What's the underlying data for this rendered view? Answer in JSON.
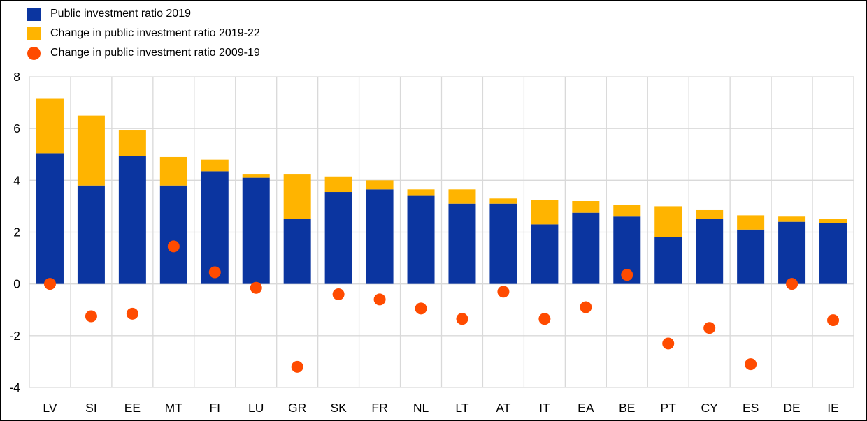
{
  "figure": {
    "background": "#ffffff",
    "border_color": "#000000"
  },
  "legend": {
    "position": "top-left",
    "items": [
      {
        "id": "public-investment-ratio-2019",
        "label": "Public investment ratio 2019",
        "marker": "square",
        "color": "#0b35a0"
      },
      {
        "id": "change-2019-22",
        "label": "Change in public investment ratio 2019-22",
        "marker": "square",
        "color": "#ffb400"
      },
      {
        "id": "change-2009-19",
        "label": "Change in public investment ratio 2009-19",
        "marker": "circle",
        "color": "#ff4b00"
      }
    ]
  },
  "chart_data": {
    "type": "bar",
    "subtype": "stacked-bars-with-scatter-overlay",
    "title": "",
    "xlabel": "",
    "ylabel": "",
    "categories": [
      "LV",
      "SI",
      "EE",
      "MT",
      "FI",
      "LU",
      "GR",
      "SK",
      "FR",
      "NL",
      "LT",
      "AT",
      "IT",
      "EA",
      "BE",
      "PT",
      "CY",
      "ES",
      "DE",
      "IE"
    ],
    "series": [
      {
        "name": "Public investment ratio 2019",
        "type": "bar",
        "color": "#0b35a0",
        "values": [
          5.05,
          3.8,
          4.95,
          3.8,
          4.35,
          4.1,
          2.5,
          3.55,
          3.65,
          3.4,
          3.1,
          3.1,
          2.3,
          2.75,
          2.6,
          1.8,
          2.5,
          2.1,
          2.4,
          2.35
        ]
      },
      {
        "name": "Change in public investment ratio 2019-22",
        "type": "bar",
        "stacked_on": "Public investment ratio 2019",
        "color": "#ffb400",
        "values": [
          2.1,
          2.7,
          1.0,
          1.1,
          0.45,
          0.15,
          1.75,
          0.6,
          0.35,
          0.25,
          0.55,
          0.2,
          0.95,
          0.45,
          0.45,
          1.2,
          0.35,
          0.55,
          0.2,
          0.15
        ]
      },
      {
        "name": "Change in public investment ratio 2009-19",
        "type": "scatter",
        "color": "#ff4b00",
        "values": [
          0.0,
          -1.25,
          -1.15,
          1.45,
          0.45,
          -0.15,
          -3.2,
          -0.4,
          -0.6,
          -0.95,
          -1.35,
          -0.3,
          -1.35,
          -0.9,
          0.35,
          -2.3,
          -1.7,
          -3.1,
          0.0,
          -1.4
        ]
      }
    ],
    "ylim": [
      -4,
      8
    ],
    "yticks": [
      8,
      6,
      4,
      2,
      0,
      -2,
      -4
    ],
    "grid": "both",
    "gridline_color": "#d9d9d9",
    "axis_text_color": "#000000",
    "legend_position": "top-left"
  }
}
